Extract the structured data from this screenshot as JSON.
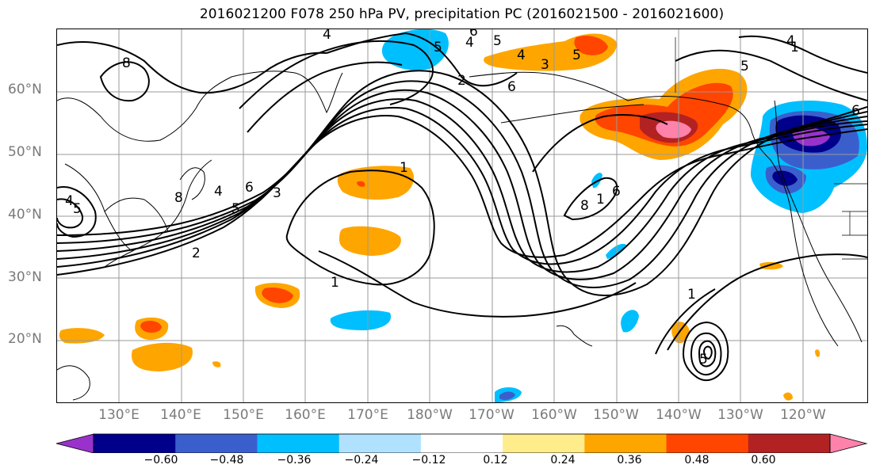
{
  "title": "2016021200 F078 250 hPa PV, precipitation PC (2016021500 - 2016021600)",
  "lat_labels": [
    "60°N",
    "50°N",
    "40°N",
    "30°N",
    "20°N"
  ],
  "lon_labels": [
    "130°E",
    "140°E",
    "150°E",
    "160°E",
    "170°E",
    "180°W",
    "170°W",
    "160°W",
    "150°W",
    "140°W",
    "130°W",
    "120°W"
  ],
  "colorbar": {
    "ticks": [
      "−0.60",
      "−0.48",
      "−0.36",
      "−0.24",
      "−0.12",
      "0.12",
      "0.24",
      "0.36",
      "0.48",
      "0.60"
    ],
    "colors": [
      "#9932cc",
      "#00008b",
      "#3a5fcd",
      "#00bfff",
      "#b0e2ff",
      "#ffffff",
      "#ffec8b",
      "#ffa500",
      "#ff4500",
      "#b22222",
      "#ff82ab"
    ]
  },
  "contour_labels": [
    "8",
    "4",
    "5",
    "6",
    "5",
    "2",
    "3",
    "4",
    "1",
    "5",
    "6",
    "4",
    "5",
    "6",
    "3",
    "2",
    "1",
    "8",
    "6",
    "1",
    "1",
    "4",
    "5",
    "4",
    "5",
    "1",
    "6",
    "4",
    "8",
    "5"
  ]
}
